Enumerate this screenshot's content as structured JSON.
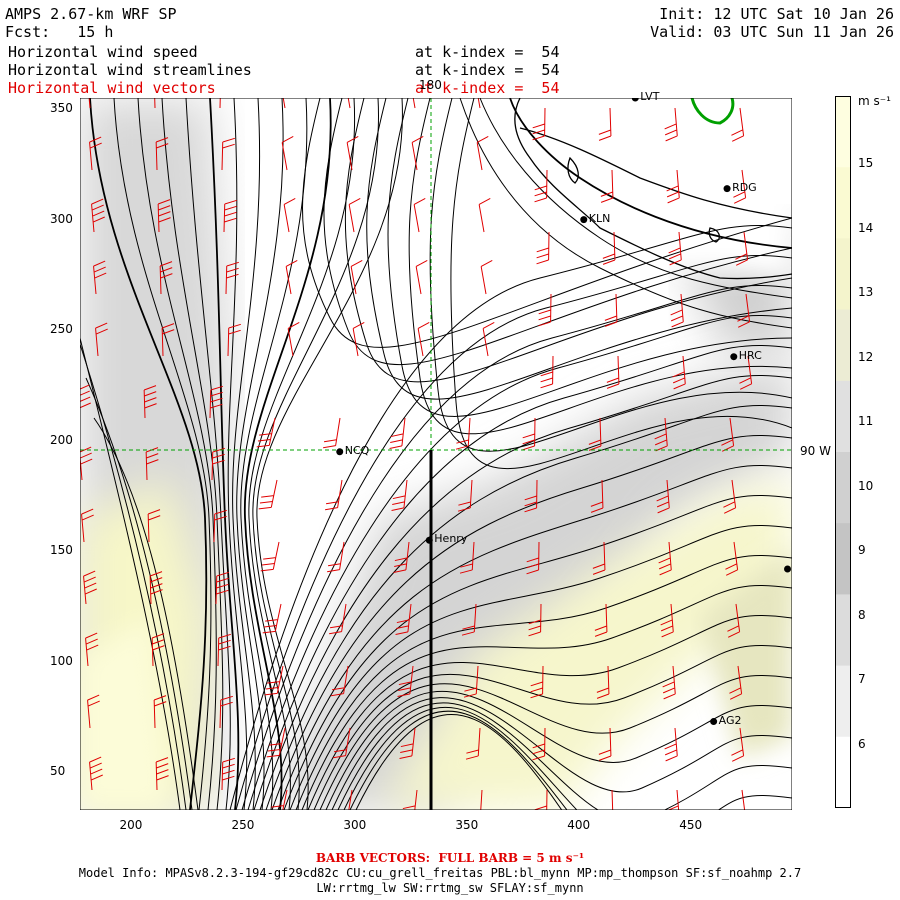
{
  "header": {
    "title": "AMPS 2.67-km WRF SP",
    "fcst": "Fcst:   15 h",
    "init": "Init: 12 UTC Sat 10 Jan 26",
    "valid": "Valid: 03 UTC Sun 11 Jan 26",
    "fields": [
      {
        "name": "Horizontal wind speed",
        "level": "at k-index =  54",
        "color": "#000000"
      },
      {
        "name": "Horizontal wind streamlines",
        "level": "at k-index =  54",
        "color": "#000000"
      },
      {
        "name": "Horizontal wind vectors",
        "level": "at k-index =  54",
        "color": "#e00000"
      }
    ]
  },
  "axes": {
    "x_ticks": [
      "200",
      "250",
      "300",
      "350",
      "400",
      "450"
    ],
    "y_ticks": [
      "350",
      "300",
      "250",
      "200",
      "150",
      "100",
      "50"
    ],
    "x_range": [
      177,
      495
    ],
    "y_range": [
      33,
      355
    ],
    "meridian_label": "180",
    "parallel_label": "90 W"
  },
  "stations": [
    {
      "name": "LVT",
      "x": 425,
      "y": 355
    },
    {
      "name": "RDG",
      "x": 466,
      "y": 314
    },
    {
      "name": "KLN",
      "x": 402,
      "y": 300
    },
    {
      "name": "HRC",
      "x": 469,
      "y": 238
    },
    {
      "name": "NCQ",
      "x": 293,
      "y": 195
    },
    {
      "name": "Henry",
      "x": 333,
      "y": 155
    },
    {
      "name": "AG2",
      "x": 460,
      "y": 73
    },
    {
      "name": "",
      "x": 493,
      "y": 142
    }
  ],
  "colorbar": {
    "unit": "m s⁻¹",
    "labels": [
      "15",
      "14",
      "13",
      "12",
      "11",
      "10",
      "9",
      "8",
      "7",
      "6"
    ],
    "colors": [
      "#fefee0",
      "#fafad2",
      "#f4f4cc",
      "#ececd4",
      "#e0e0e0",
      "#d0d0d0",
      "#c4c4c4",
      "#dcdcdc",
      "#eeeeee",
      "#ffffff"
    ]
  },
  "footer": {
    "barb": "BARB VECTORS:  FULL BARB = 5 m s⁻¹",
    "model_info": "Model Info: MPASv8.2.3-194-gf29cd82c CU:cu_grell_freitas PBL:bl_mynn MP:mp_thompson SF:sf_noahmp 2.7",
    "physics": "LW:rrtmg_lw SW:rrtmg_sw SFLAY:sf_mynn"
  }
}
